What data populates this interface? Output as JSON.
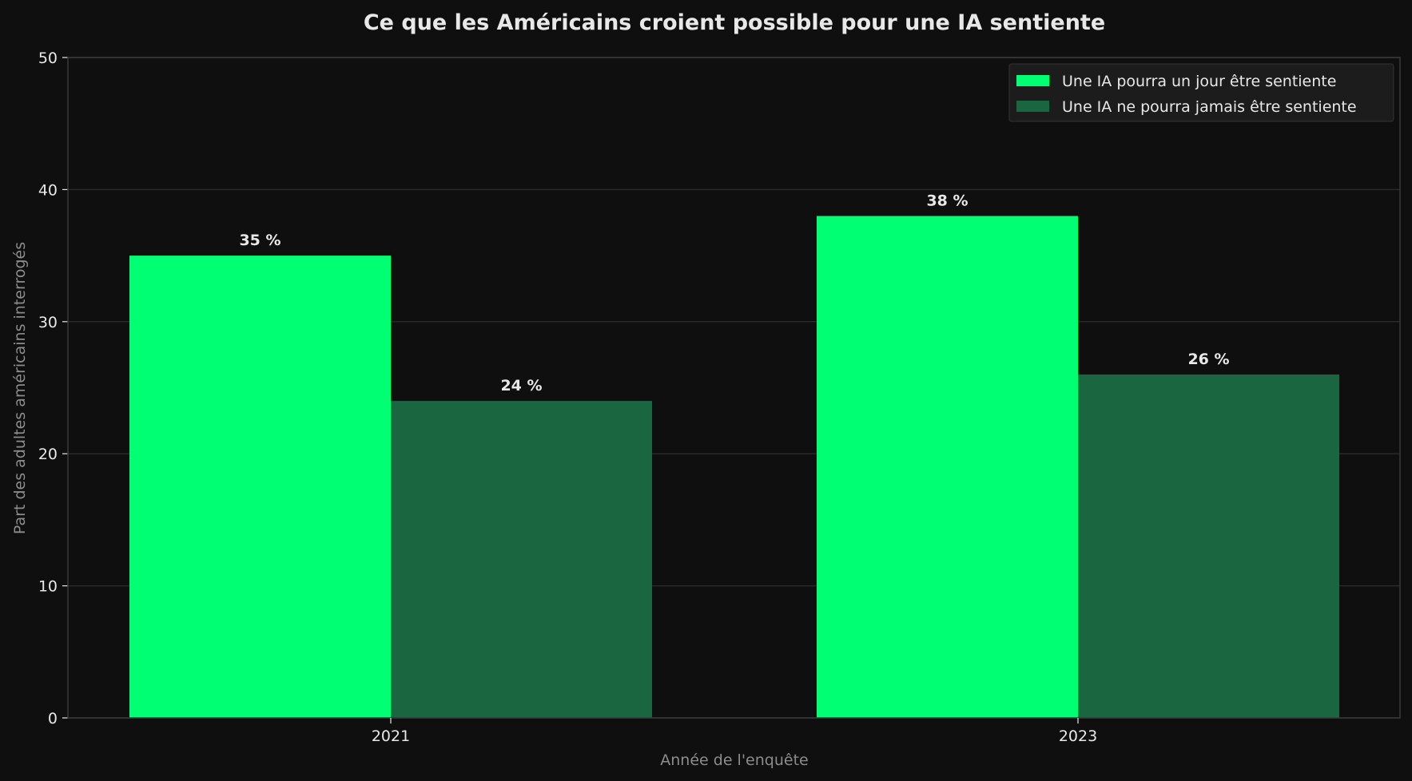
{
  "chart_data": {
    "type": "bar",
    "title": "Ce que les Américains croient possible pour une IA sentiente",
    "xlabel": "Année de l'enquête",
    "ylabel": "Part des adultes américains interrogés",
    "categories": [
      "2021",
      "2023"
    ],
    "series": [
      {
        "name": "Une IA pourra un jour être sentiente",
        "values": [
          35,
          38
        ],
        "labels": [
          "35 %",
          "38 %"
        ],
        "color": "#00ff73"
      },
      {
        "name": "Une IA ne pourra jamais être sentiente",
        "values": [
          24,
          26
        ],
        "labels": [
          "24 %",
          "26 %"
        ],
        "color": "#1a6641"
      }
    ],
    "ylim": [
      0,
      50
    ],
    "yticks": [
      0,
      10,
      20,
      30,
      40,
      50
    ],
    "grid": true,
    "legend_position": "top-right"
  },
  "colors": {
    "background": "#0f0f0f",
    "grid": "#2a2a2a",
    "axis": "#3a3a3a",
    "text": "#e8e8e8",
    "muted_text": "#8c8c8c"
  }
}
